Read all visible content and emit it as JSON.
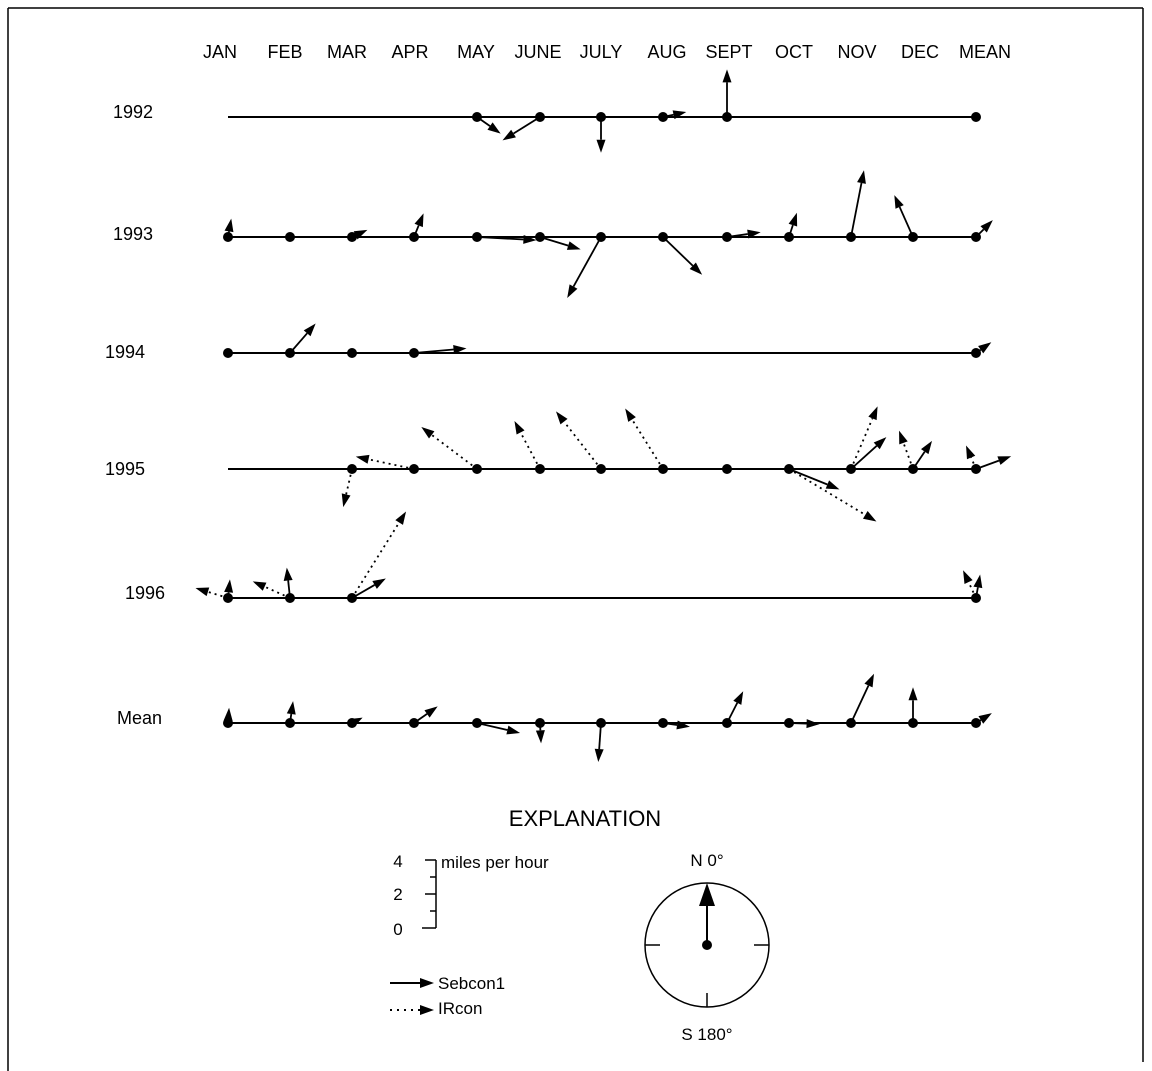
{
  "chart_data": {
    "type": "scatter",
    "columns": [
      "JAN",
      "FEB",
      "MAR",
      "APR",
      "MAY",
      "JUNE",
      "JULY",
      "AUG",
      "SEPT",
      "OCT",
      "NOV",
      "DEC",
      "MEAN"
    ],
    "series": [
      "Sebcon1",
      "IRcon"
    ],
    "rows": [
      {
        "label": "1992",
        "Sebcon1": [
          null,
          null,
          null,
          null,
          [
            1.7,
            125
          ],
          [
            2.6,
            238
          ],
          [
            2.1,
            180
          ],
          [
            1.4,
            78
          ],
          [
            2.8,
            0
          ],
          null,
          null,
          null,
          [
            0,
            0
          ]
        ],
        "IRcon": [
          null,
          null,
          null,
          null,
          null,
          null,
          null,
          null,
          null,
          null,
          null,
          null,
          null
        ]
      },
      {
        "label": "1993",
        "Sebcon1": [
          [
            1.1,
            10
          ],
          [
            0,
            0
          ],
          [
            1.0,
            65
          ],
          [
            1.5,
            22
          ],
          [
            3.5,
            93
          ],
          [
            2.5,
            107
          ],
          [
            4.1,
            209
          ],
          [
            3.2,
            134
          ],
          [
            2.0,
            82
          ],
          [
            1.5,
            18
          ],
          [
            4.0,
            11
          ],
          [
            2.7,
            336
          ],
          [
            1.4,
            45
          ]
        ],
        "IRcon": [
          null,
          null,
          null,
          null,
          null,
          null,
          null,
          null,
          null,
          null,
          null,
          null,
          null
        ]
      },
      {
        "label": "1994",
        "Sebcon1": [
          [
            0,
            0
          ],
          [
            2.3,
            41
          ],
          [
            0,
            0
          ],
          [
            3.1,
            85
          ],
          null,
          null,
          null,
          null,
          null,
          null,
          null,
          null,
          [
            1.1,
            55
          ]
        ],
        "IRcon": [
          null,
          null,
          null,
          null,
          null,
          null,
          null,
          null,
          null,
          null,
          null,
          null,
          null
        ]
      },
      {
        "label": "1995",
        "Sebcon1": [
          null,
          null,
          null,
          null,
          null,
          null,
          null,
          null,
          [
            0,
            0
          ],
          [
            3.2,
            112
          ],
          [
            2.8,
            48
          ],
          [
            2.0,
            34
          ],
          [
            2.2,
            70
          ]
        ],
        "IRcon": [
          null,
          null,
          [
            2.3,
            193
          ],
          [
            3.5,
            282
          ],
          [
            4.1,
            307
          ],
          [
            3.2,
            332
          ],
          [
            4.3,
            322
          ],
          [
            4.2,
            328
          ],
          null,
          [
            6.0,
            121
          ],
          [
            4.0,
            23
          ],
          [
            2.4,
            340
          ],
          [
            1.5,
            337
          ]
        ]
      },
      {
        "label": "1996",
        "Sebcon1": [
          [
            1.1,
            6
          ],
          [
            1.8,
            354
          ],
          [
            2.3,
            60
          ],
          null,
          null,
          null,
          null,
          null,
          null,
          null,
          null,
          null,
          [
            1.4,
            10
          ]
        ],
        "IRcon": [
          [
            2.0,
            287
          ],
          [
            2.4,
            294
          ],
          [
            6.0,
            32
          ],
          null,
          null,
          null,
          null,
          null,
          null,
          null,
          null,
          null,
          [
            1.8,
            335
          ]
        ]
      },
      {
        "label": "Mean",
        "Sebcon1": [
          [
            0.9,
            4
          ],
          [
            1.3,
            8
          ],
          [
            0.7,
            63
          ],
          [
            1.7,
            55
          ],
          [
            2.6,
            103
          ],
          [
            1.2,
            177
          ],
          [
            2.3,
            184
          ],
          [
            1.6,
            98
          ],
          [
            2.1,
            27
          ],
          [
            1.8,
            92
          ],
          [
            3.2,
            25
          ],
          [
            2.1,
            0
          ],
          [
            1.1,
            58
          ]
        ],
        "IRcon": [
          null,
          null,
          null,
          null,
          null,
          null,
          null,
          null,
          null,
          null,
          null,
          null,
          null
        ]
      }
    ],
    "explanation": {
      "title": "EXPLANATION",
      "scale_label": "miles per hour",
      "scale_ticks": [
        4,
        2,
        0
      ],
      "compass_north": "N 0°",
      "compass_south": "S 180°"
    }
  }
}
